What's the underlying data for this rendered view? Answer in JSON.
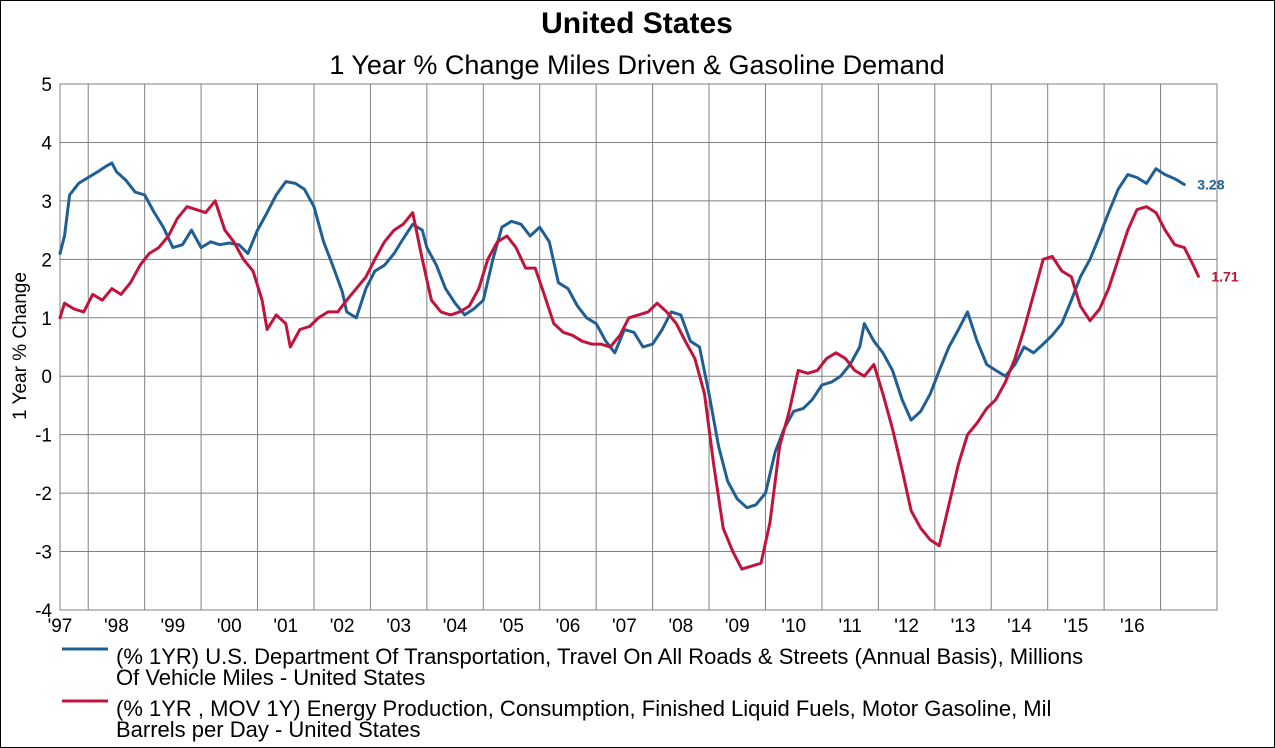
{
  "chart_data": {
    "type": "line",
    "title": "United States",
    "subtitle": "1 Year % Change Miles Driven & Gasoline Demand",
    "ylabel": "1 Year % Change",
    "xlabel": "",
    "ylim": [
      -4,
      5
    ],
    "yticks": [
      5,
      4,
      3,
      2,
      1,
      0,
      -1,
      -2,
      -3,
      -4
    ],
    "xlim": [
      1996.5,
      2017.0
    ],
    "grid": true,
    "legend_position": "bottom",
    "x_ticks": [
      {
        "label": "'97",
        "x": 1997.0
      },
      {
        "label": "'98",
        "x": 1998.0
      },
      {
        "label": "'99",
        "x": 1999.0
      },
      {
        "label": "'00",
        "x": 2000.0
      },
      {
        "label": "'01",
        "x": 2001.0
      },
      {
        "label": "'02",
        "x": 2002.0
      },
      {
        "label": "'03",
        "x": 2003.0
      },
      {
        "label": "'04",
        "x": 2004.0
      },
      {
        "label": "'05",
        "x": 2005.0
      },
      {
        "label": "'06",
        "x": 2006.0
      },
      {
        "label": "'07",
        "x": 2007.0
      },
      {
        "label": "'08",
        "x": 2008.0
      },
      {
        "label": "'09",
        "x": 2009.0
      },
      {
        "label": "'10",
        "x": 2010.0
      },
      {
        "label": "'11",
        "x": 2011.0
      },
      {
        "label": "'12",
        "x": 2012.0
      },
      {
        "label": "'13",
        "x": 2013.0
      },
      {
        "label": "'14",
        "x": 2014.0
      },
      {
        "label": "'15",
        "x": 2015.0
      },
      {
        "label": "'16",
        "x": 2016.0
      }
    ],
    "series": [
      {
        "name_line1": "(% 1YR) U.S. Department Of Transportation, Travel On All Roads & Streets (Annual Basis), Millions",
        "name_line2": "Of Vehicle Miles - United States",
        "color": "#1f5f94",
        "end_label": "3.28",
        "points": [
          [
            1996.5,
            2.1
          ],
          [
            1996.58,
            2.4
          ],
          [
            1996.67,
            3.1
          ],
          [
            1996.83,
            3.3
          ],
          [
            1997.0,
            3.4
          ],
          [
            1997.17,
            3.5
          ],
          [
            1997.33,
            3.6
          ],
          [
            1997.42,
            3.65
          ],
          [
            1997.5,
            3.5
          ],
          [
            1997.67,
            3.35
          ],
          [
            1997.83,
            3.15
          ],
          [
            1998.0,
            3.1
          ],
          [
            1998.17,
            2.8
          ],
          [
            1998.33,
            2.55
          ],
          [
            1998.5,
            2.2
          ],
          [
            1998.67,
            2.25
          ],
          [
            1998.83,
            2.5
          ],
          [
            1999.0,
            2.2
          ],
          [
            1999.17,
            2.3
          ],
          [
            1999.33,
            2.25
          ],
          [
            1999.5,
            2.28
          ],
          [
            1999.67,
            2.25
          ],
          [
            1999.83,
            2.1
          ],
          [
            2000.0,
            2.5
          ],
          [
            2000.17,
            2.8
          ],
          [
            2000.33,
            3.1
          ],
          [
            2000.5,
            3.33
          ],
          [
            2000.67,
            3.3
          ],
          [
            2000.83,
            3.2
          ],
          [
            2001.0,
            2.9
          ],
          [
            2001.17,
            2.3
          ],
          [
            2001.33,
            1.9
          ],
          [
            2001.5,
            1.45
          ],
          [
            2001.58,
            1.1
          ],
          [
            2001.75,
            1.0
          ],
          [
            2001.92,
            1.5
          ],
          [
            2002.08,
            1.8
          ],
          [
            2002.25,
            1.9
          ],
          [
            2002.42,
            2.1
          ],
          [
            2002.58,
            2.35
          ],
          [
            2002.75,
            2.6
          ],
          [
            2002.92,
            2.5
          ],
          [
            2003.0,
            2.2
          ],
          [
            2003.17,
            1.9
          ],
          [
            2003.33,
            1.5
          ],
          [
            2003.5,
            1.25
          ],
          [
            2003.67,
            1.05
          ],
          [
            2003.83,
            1.15
          ],
          [
            2004.0,
            1.3
          ],
          [
            2004.17,
            2.0
          ],
          [
            2004.33,
            2.55
          ],
          [
            2004.5,
            2.65
          ],
          [
            2004.67,
            2.6
          ],
          [
            2004.83,
            2.4
          ],
          [
            2005.0,
            2.55
          ],
          [
            2005.17,
            2.3
          ],
          [
            2005.33,
            1.6
          ],
          [
            2005.5,
            1.5
          ],
          [
            2005.67,
            1.2
          ],
          [
            2005.83,
            1.0
          ],
          [
            2006.0,
            0.9
          ],
          [
            2006.17,
            0.6
          ],
          [
            2006.33,
            0.4
          ],
          [
            2006.5,
            0.8
          ],
          [
            2006.67,
            0.75
          ],
          [
            2006.83,
            0.5
          ],
          [
            2007.0,
            0.55
          ],
          [
            2007.17,
            0.8
          ],
          [
            2007.33,
            1.1
          ],
          [
            2007.5,
            1.05
          ],
          [
            2007.67,
            0.6
          ],
          [
            2007.83,
            0.5
          ],
          [
            2008.0,
            -0.3
          ],
          [
            2008.17,
            -1.2
          ],
          [
            2008.33,
            -1.8
          ],
          [
            2008.5,
            -2.1
          ],
          [
            2008.67,
            -2.25
          ],
          [
            2008.83,
            -2.2
          ],
          [
            2009.0,
            -2.0
          ],
          [
            2009.17,
            -1.3
          ],
          [
            2009.33,
            -0.9
          ],
          [
            2009.5,
            -0.6
          ],
          [
            2009.67,
            -0.55
          ],
          [
            2009.83,
            -0.4
          ],
          [
            2010.0,
            -0.15
          ],
          [
            2010.17,
            -0.1
          ],
          [
            2010.33,
            0.0
          ],
          [
            2010.5,
            0.2
          ],
          [
            2010.67,
            0.5
          ],
          [
            2010.75,
            0.9
          ],
          [
            2010.92,
            0.6
          ],
          [
            2011.08,
            0.4
          ],
          [
            2011.25,
            0.1
          ],
          [
            2011.42,
            -0.4
          ],
          [
            2011.58,
            -0.75
          ],
          [
            2011.75,
            -0.6
          ],
          [
            2011.92,
            -0.3
          ],
          [
            2012.08,
            0.1
          ],
          [
            2012.25,
            0.5
          ],
          [
            2012.42,
            0.8
          ],
          [
            2012.58,
            1.1
          ],
          [
            2012.75,
            0.6
          ],
          [
            2012.92,
            0.2
          ],
          [
            2013.08,
            0.1
          ],
          [
            2013.25,
            0.0
          ],
          [
            2013.42,
            0.2
          ],
          [
            2013.58,
            0.5
          ],
          [
            2013.75,
            0.4
          ],
          [
            2013.92,
            0.55
          ],
          [
            2014.08,
            0.7
          ],
          [
            2014.25,
            0.9
          ],
          [
            2014.42,
            1.3
          ],
          [
            2014.58,
            1.7
          ],
          [
            2014.75,
            2.0
          ],
          [
            2014.92,
            2.4
          ],
          [
            2015.08,
            2.8
          ],
          [
            2015.25,
            3.2
          ],
          [
            2015.42,
            3.45
          ],
          [
            2015.58,
            3.4
          ],
          [
            2015.75,
            3.3
          ],
          [
            2015.92,
            3.55
          ],
          [
            2016.08,
            3.45
          ],
          [
            2016.25,
            3.38
          ],
          [
            2016.42,
            3.28
          ]
        ]
      },
      {
        "name_line1": "(% 1YR , MOV 1Y) Energy Production, Consumption, Finished Liquid Fuels, Motor Gasoline, Mil",
        "name_line2": "Barrels per Day - United States",
        "color": "#c0143c",
        "end_label": "1.71",
        "points": [
          [
            1996.5,
            1.0
          ],
          [
            1996.58,
            1.25
          ],
          [
            1996.75,
            1.15
          ],
          [
            1996.92,
            1.1
          ],
          [
            1997.08,
            1.4
          ],
          [
            1997.25,
            1.3
          ],
          [
            1997.42,
            1.5
          ],
          [
            1997.58,
            1.4
          ],
          [
            1997.75,
            1.6
          ],
          [
            1997.92,
            1.9
          ],
          [
            1998.08,
            2.1
          ],
          [
            1998.25,
            2.2
          ],
          [
            1998.42,
            2.4
          ],
          [
            1998.58,
            2.7
          ],
          [
            1998.75,
            2.9
          ],
          [
            1998.92,
            2.85
          ],
          [
            1999.08,
            2.8
          ],
          [
            1999.25,
            3.0
          ],
          [
            1999.42,
            2.5
          ],
          [
            1999.58,
            2.3
          ],
          [
            1999.75,
            2.0
          ],
          [
            1999.92,
            1.8
          ],
          [
            2000.08,
            1.3
          ],
          [
            2000.17,
            0.8
          ],
          [
            2000.33,
            1.05
          ],
          [
            2000.5,
            0.9
          ],
          [
            2000.58,
            0.5
          ],
          [
            2000.75,
            0.8
          ],
          [
            2000.92,
            0.85
          ],
          [
            2001.08,
            1.0
          ],
          [
            2001.25,
            1.1
          ],
          [
            2001.42,
            1.1
          ],
          [
            2001.58,
            1.3
          ],
          [
            2001.75,
            1.5
          ],
          [
            2001.92,
            1.7
          ],
          [
            2002.08,
            2.0
          ],
          [
            2002.25,
            2.3
          ],
          [
            2002.42,
            2.5
          ],
          [
            2002.58,
            2.6
          ],
          [
            2002.75,
            2.8
          ],
          [
            2002.92,
            2.0
          ],
          [
            2003.08,
            1.3
          ],
          [
            2003.25,
            1.1
          ],
          [
            2003.42,
            1.05
          ],
          [
            2003.58,
            1.1
          ],
          [
            2003.75,
            1.2
          ],
          [
            2003.92,
            1.5
          ],
          [
            2004.08,
            2.0
          ],
          [
            2004.25,
            2.3
          ],
          [
            2004.42,
            2.4
          ],
          [
            2004.58,
            2.2
          ],
          [
            2004.75,
            1.85
          ],
          [
            2004.92,
            1.85
          ],
          [
            2005.08,
            1.4
          ],
          [
            2005.25,
            0.9
          ],
          [
            2005.42,
            0.75
          ],
          [
            2005.58,
            0.7
          ],
          [
            2005.75,
            0.6
          ],
          [
            2005.92,
            0.55
          ],
          [
            2006.08,
            0.55
          ],
          [
            2006.25,
            0.5
          ],
          [
            2006.42,
            0.7
          ],
          [
            2006.58,
            1.0
          ],
          [
            2006.75,
            1.05
          ],
          [
            2006.92,
            1.1
          ],
          [
            2007.08,
            1.25
          ],
          [
            2007.25,
            1.1
          ],
          [
            2007.42,
            0.9
          ],
          [
            2007.58,
            0.6
          ],
          [
            2007.75,
            0.3
          ],
          [
            2007.92,
            -0.3
          ],
          [
            2008.08,
            -1.5
          ],
          [
            2008.25,
            -2.6
          ],
          [
            2008.42,
            -3.0
          ],
          [
            2008.58,
            -3.3
          ],
          [
            2008.75,
            -3.25
          ],
          [
            2008.92,
            -3.2
          ],
          [
            2009.08,
            -2.5
          ],
          [
            2009.25,
            -1.2
          ],
          [
            2009.42,
            -0.6
          ],
          [
            2009.58,
            0.1
          ],
          [
            2009.75,
            0.05
          ],
          [
            2009.92,
            0.1
          ],
          [
            2010.08,
            0.3
          ],
          [
            2010.25,
            0.4
          ],
          [
            2010.42,
            0.3
          ],
          [
            2010.58,
            0.1
          ],
          [
            2010.75,
            0.0
          ],
          [
            2010.92,
            0.2
          ],
          [
            2011.08,
            -0.3
          ],
          [
            2011.25,
            -0.9
          ],
          [
            2011.42,
            -1.6
          ],
          [
            2011.58,
            -2.3
          ],
          [
            2011.75,
            -2.6
          ],
          [
            2011.92,
            -2.8
          ],
          [
            2012.08,
            -2.9
          ],
          [
            2012.25,
            -2.2
          ],
          [
            2012.42,
            -1.5
          ],
          [
            2012.58,
            -1.0
          ],
          [
            2012.75,
            -0.8
          ],
          [
            2012.92,
            -0.55
          ],
          [
            2013.08,
            -0.4
          ],
          [
            2013.25,
            -0.1
          ],
          [
            2013.42,
            0.3
          ],
          [
            2013.58,
            0.8
          ],
          [
            2013.75,
            1.4
          ],
          [
            2013.92,
            2.0
          ],
          [
            2014.08,
            2.05
          ],
          [
            2014.25,
            1.8
          ],
          [
            2014.42,
            1.7
          ],
          [
            2014.58,
            1.2
          ],
          [
            2014.75,
            0.95
          ],
          [
            2014.92,
            1.15
          ],
          [
            2015.08,
            1.5
          ],
          [
            2015.25,
            2.0
          ],
          [
            2015.42,
            2.5
          ],
          [
            2015.58,
            2.85
          ],
          [
            2015.75,
            2.9
          ],
          [
            2015.92,
            2.8
          ],
          [
            2016.08,
            2.5
          ],
          [
            2016.25,
            2.25
          ],
          [
            2016.42,
            2.2
          ],
          [
            2016.58,
            1.9
          ],
          [
            2016.67,
            1.71
          ]
        ]
      }
    ]
  }
}
